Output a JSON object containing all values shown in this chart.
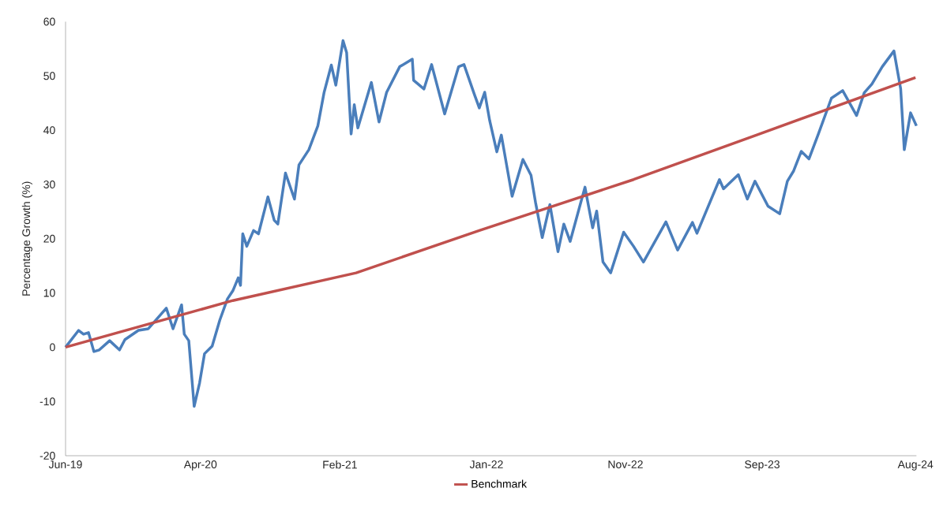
{
  "chart_data": {
    "type": "line",
    "ylabel": "Percentage Growth (%)",
    "xlim": [
      "2019-06-15",
      "2024-08-19"
    ],
    "ylim": [
      -20,
      60
    ],
    "yticks": [
      -20,
      -10,
      0,
      10,
      20,
      30,
      40,
      50,
      60
    ],
    "xticks": [
      {
        "value": "2019-06-15",
        "label": "Jun-19"
      },
      {
        "value": "2020-04-10",
        "label": "Apr-20"
      },
      {
        "value": "2021-02-14",
        "label": "Feb-21"
      },
      {
        "value": "2022-01-06",
        "label": "Jan-22"
      },
      {
        "value": "2022-11-11",
        "label": "Nov-22"
      },
      {
        "value": "2023-09-11",
        "label": "Sep-23"
      },
      {
        "value": "2024-08-17",
        "label": "Aug-24"
      }
    ],
    "grid": false,
    "legend": "bottom",
    "series": [
      {
        "color": "#4a7ebb",
        "x": [
          "2019-06-15",
          "2019-07-14",
          "2019-07-25",
          "2019-08-05",
          "2019-08-17",
          "2019-08-29",
          "2019-09-21",
          "2019-10-13",
          "2019-10-25",
          "2019-11-24",
          "2019-12-16",
          "2020-01-02",
          "2020-01-25",
          "2020-02-09",
          "2020-02-28",
          "2020-03-05",
          "2020-03-15",
          "2020-03-27",
          "2020-04-08",
          "2020-04-19",
          "2020-05-06",
          "2020-05-23",
          "2020-06-09",
          "2020-06-21",
          "2020-07-03",
          "2020-07-08",
          "2020-07-13",
          "2020-07-22",
          "2020-08-06",
          "2020-08-17",
          "2020-09-07",
          "2020-09-21",
          "2020-09-29",
          "2020-10-16",
          "2020-11-05",
          "2020-11-15",
          "2020-12-07",
          "2020-12-27",
          "2021-01-10",
          "2021-01-26",
          "2021-02-05",
          "2021-02-21",
          "2021-03-01",
          "2021-03-11",
          "2021-03-18",
          "2021-03-26",
          "2021-04-25",
          "2021-05-12",
          "2021-05-29",
          "2021-06-27",
          "2021-07-25",
          "2021-07-28",
          "2021-08-20",
          "2021-09-06",
          "2021-10-05",
          "2021-11-05",
          "2021-11-17",
          "2021-12-10",
          "2021-12-21",
          "2022-01-02",
          "2022-01-13",
          "2022-01-29",
          "2022-02-08",
          "2022-03-04",
          "2022-03-28",
          "2022-04-15",
          "2022-04-25",
          "2022-05-10",
          "2022-05-27",
          "2022-06-14",
          "2022-06-27",
          "2022-07-11",
          "2022-08-13",
          "2022-08-30",
          "2022-09-08",
          "2022-09-22",
          "2022-10-09",
          "2022-11-07",
          "2022-11-29",
          "2022-12-21",
          "2023-02-09",
          "2023-03-07",
          "2023-04-09",
          "2023-04-19",
          "2023-06-08",
          "2023-06-17",
          "2023-07-20",
          "2023-08-09",
          "2023-08-26",
          "2023-09-24",
          "2023-10-20",
          "2023-11-06",
          "2023-11-20",
          "2023-12-07",
          "2023-12-24",
          "2024-01-14",
          "2024-02-12",
          "2024-03-08",
          "2024-04-08",
          "2024-04-25",
          "2024-05-12",
          "2024-06-04",
          "2024-06-30",
          "2024-07-15",
          "2024-07-23",
          "2024-08-06",
          "2024-08-19"
        ],
        "values": [
          0,
          3.1,
          2.4,
          2.7,
          -0.8,
          -0.5,
          1.2,
          -0.5,
          1.4,
          3.1,
          3.4,
          5.0,
          7.2,
          3.4,
          7.8,
          2.4,
          1.2,
          -10.9,
          -6.6,
          -1.2,
          0.2,
          5.0,
          8.9,
          10.4,
          12.8,
          11.4,
          20.9,
          18.6,
          21.5,
          20.9,
          27.7,
          23.4,
          22.7,
          32.1,
          27.3,
          33.6,
          36.4,
          40.8,
          47.0,
          52.0,
          48.3,
          56.5,
          54.3,
          39.3,
          44.7,
          40.4,
          48.8,
          41.5,
          47.0,
          51.7,
          53.1,
          49.2,
          47.6,
          52.1,
          43.0,
          51.7,
          52.1,
          46.6,
          44.1,
          47.0,
          41.8,
          36.0,
          39.1,
          27.8,
          34.6,
          31.7,
          26.7,
          20.2,
          26.3,
          17.6,
          22.7,
          19.5,
          29.5,
          22.0,
          25.1,
          15.7,
          13.7,
          21.2,
          18.6,
          15.7,
          23.1,
          17.9,
          23.0,
          21.0,
          30.9,
          29.2,
          31.8,
          27.3,
          30.6,
          26.0,
          24.6,
          30.6,
          32.5,
          36.1,
          34.7,
          39.3,
          45.9,
          47.3,
          42.7,
          46.9,
          48.5,
          51.7,
          54.6,
          47.6,
          36.4,
          43.2,
          40.8
        ]
      },
      {
        "name": "Benchmark",
        "color": "#c0504d",
        "x": [
          "2019-06-15",
          "2020-06-21",
          "2021-03-22",
          "2021-12-21",
          "2022-11-29",
          "2023-08-29",
          "2024-08-17"
        ],
        "values": [
          0,
          8.6,
          13.7,
          21.5,
          30.9,
          39.1,
          49.7
        ]
      }
    ]
  }
}
